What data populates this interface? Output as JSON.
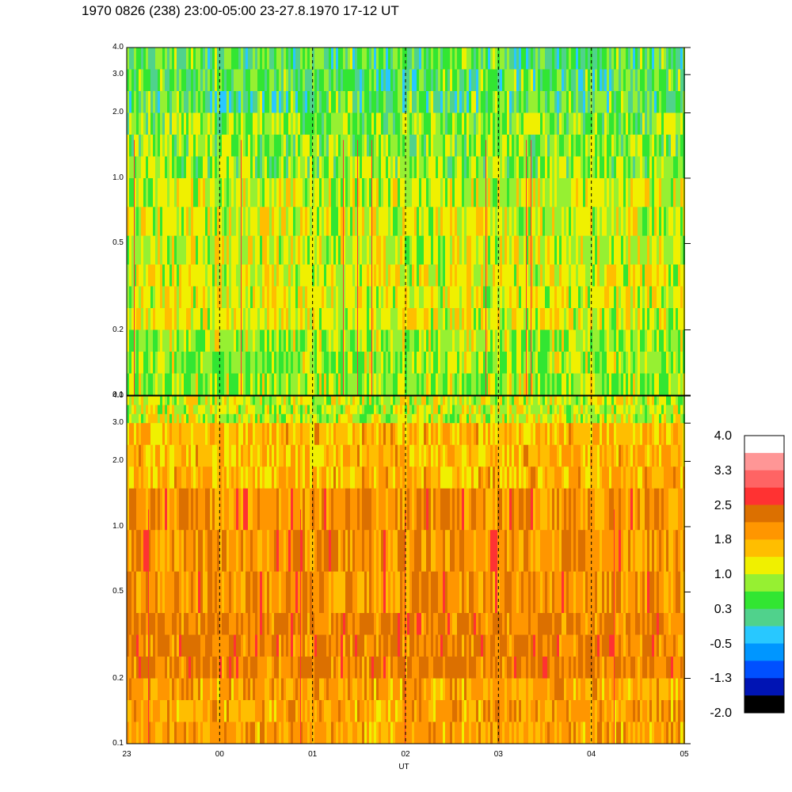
{
  "title": "1970 0826 (238) 23:00-05:00 23-27.8.1970  17-12 UT",
  "colors": {
    "black": "#000000",
    "dark_blue": "#0014b4",
    "blue": "#0050ff",
    "mid_blue": "#0096ff",
    "cyan": "#28c8ff",
    "teal": "#50d28c",
    "green": "#32e632",
    "yellow_green": "#96f032",
    "yellow": "#f0f000",
    "gold": "#ffbe00",
    "orange": "#ff9600",
    "dark_orange": "#dc7000",
    "red": "#ff3232",
    "light_red": "#ff6464",
    "pink": "#ff9696",
    "white": "#ffffff"
  },
  "chart_data": {
    "type": "heatmap",
    "xlabel": "UT",
    "x_ticks": [
      "23",
      "00",
      "01",
      "02",
      "03",
      "04",
      "05"
    ],
    "y_scale": "log",
    "y_ticks": [
      "4.0",
      "3.0",
      "2.0",
      "1.0",
      "0.5",
      "0.2",
      "0.1"
    ],
    "y_tick_values": [
      4.0,
      3.0,
      2.0,
      1.0,
      0.5,
      0.2,
      0.1
    ],
    "ylim": [
      0.1,
      4.0
    ],
    "panels": [
      {
        "name": "top",
        "dominant_levels": [
          "green",
          "yellow",
          "yellow_green",
          "teal"
        ]
      },
      {
        "name": "bottom",
        "dominant_levels": [
          "orange",
          "dark_orange",
          "gold",
          "yellow"
        ]
      }
    ],
    "colorbar": {
      "labels": [
        "4.0",
        "3.3",
        "2.5",
        "1.8",
        "1.0",
        "0.3",
        "-0.5",
        "-1.3",
        "-2.0"
      ],
      "colors": [
        "#ffffff",
        "#ff9696",
        "#ff6464",
        "#ff3232",
        "#dc7000",
        "#ff9600",
        "#ffbe00",
        "#f0f000",
        "#96f032",
        "#32e632",
        "#50d28c",
        "#28c8ff",
        "#0096ff",
        "#0050ff",
        "#0014b4",
        "#000000"
      ]
    }
  }
}
